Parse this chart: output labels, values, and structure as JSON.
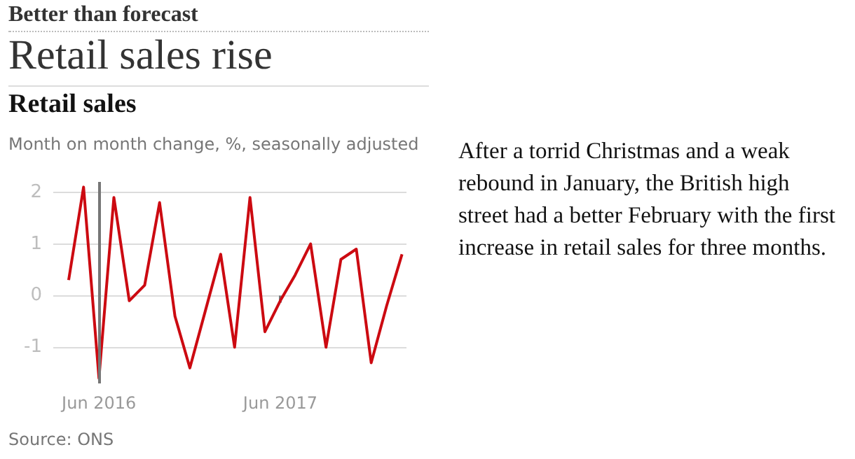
{
  "chart_data": {
    "type": "line",
    "title": "Retail sales rise",
    "subtitle": "Retail sales",
    "ylabel": "Month on month change, %, seasonally adjusted",
    "annotations": [
      "Better than forecast",
      "After a torrid Christmas and a weak rebound in January, the British high street had a better February with the first increase in retail sales for three months.",
      "Source: ONS"
    ],
    "x": [
      "2016-04",
      "2016-05",
      "2016-06",
      "2016-07",
      "2016-08",
      "2016-09",
      "2016-10",
      "2016-11",
      "2016-12",
      "2017-01",
      "2017-02",
      "2017-03",
      "2017-04",
      "2017-05",
      "2017-06",
      "2017-07",
      "2017-08",
      "2017-09",
      "2017-10",
      "2017-11",
      "2017-12",
      "2018-01",
      "2018-02"
    ],
    "series": [
      {
        "color": "#cc0a11",
        "values": [
          0.3,
          2.1,
          -1.6,
          1.9,
          -0.1,
          0.2,
          1.8,
          -0.4,
          -1.4,
          -0.3,
          0.8,
          -1.0,
          1.9,
          -0.7,
          -0.1,
          0.4,
          1.0,
          -1.0,
          0.7,
          0.9,
          -1.3,
          -0.2,
          0.8
        ]
      }
    ],
    "xlim": [
      "2016-03-01",
      "2018-02-10"
    ],
    "xticks": [
      {
        "value": "2016-06",
        "label": "Jun 2016"
      },
      {
        "value": "2017-06",
        "label": "Jun 2017"
      }
    ],
    "ylim": [
      -1.7,
      2.2
    ],
    "yticks": [
      -1,
      0,
      1,
      2
    ],
    "grid": "y",
    "marker": "none",
    "line_style": "solid",
    "ref_lines": [
      {
        "axis": "x",
        "value": "2016-06",
        "color": "#767676"
      }
    ]
  }
}
